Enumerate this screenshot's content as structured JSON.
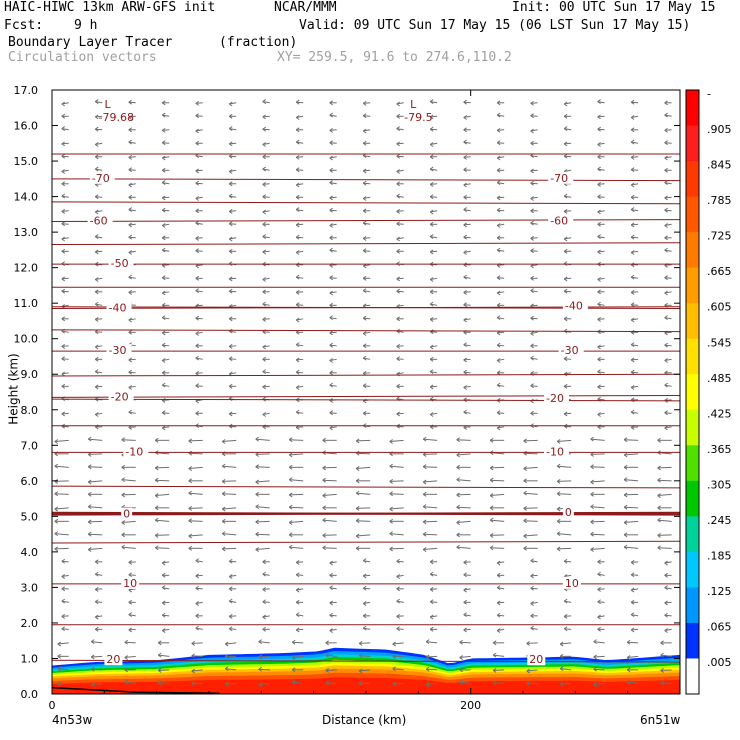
{
  "header": {
    "model": "HAIC-HIWC 13km ARW-GFS init",
    "org": "NCAR/MMM",
    "init": "Init: 00 UTC Sun 17 May 15",
    "fcst_label": "Fcst:",
    "fcst_value": "9 h",
    "valid": "Valid: 09 UTC Sun 17 May 15 (06 LST Sun 17 May 15)",
    "field_name": "Boundary Layer Tracer",
    "field_unit": "(fraction)",
    "vector_name": "Circulation vectors",
    "xy": "XY= 259.5, 91.6 to 274.6,110.2"
  },
  "chart_data": {
    "type": "heatmap",
    "xlabel": "Distance (km)",
    "ylabel": "Height (km)",
    "xlim": [
      0,
      300
    ],
    "ylim": [
      0,
      17
    ],
    "x_ticks": [
      "0",
      "200"
    ],
    "x_ticks_values": [
      0,
      200
    ],
    "x_end_labels": [
      "4n53w",
      "6n51w"
    ],
    "y_ticks": [
      "0.0",
      "1.0",
      "2.0",
      "3.0",
      "4.0",
      "5.0",
      "6.0",
      "7.0",
      "8.0",
      "9.0",
      "10.0",
      "11.0",
      "12.0",
      "13.0",
      "14.0",
      "15.0",
      "16.0",
      "17.0"
    ],
    "colorbar": {
      "labels": [
        "-",
        ".905",
        ".845",
        ".785",
        ".725",
        ".665",
        ".605",
        ".545",
        ".485",
        ".425",
        ".365",
        ".305",
        ".245",
        ".185",
        ".125",
        ".065",
        ".005"
      ],
      "colors": [
        "#ff0000",
        "#ff1e1e",
        "#ff3a00",
        "#ff5800",
        "#ff7a00",
        "#ff9c00",
        "#ffbf00",
        "#ffe000",
        "#ffff00",
        "#c8ff00",
        "#50e000",
        "#00c800",
        "#00d29a",
        "#00c8ff",
        "#0096ff",
        "#0032ff",
        "#ffffff"
      ]
    },
    "temperature_contours": {
      "units": "degC",
      "levels": [
        20,
        10,
        0,
        -10,
        -20,
        -30,
        -40,
        -50,
        -60,
        -70
      ],
      "labelled": [
        {
          "label": "20",
          "x_km": 26,
          "height_km": 0.95
        },
        {
          "label": "20",
          "x_km": 228,
          "height_km": 0.95
        },
        {
          "label": "10",
          "x_km": 34,
          "height_km": 3.1
        },
        {
          "label": "10",
          "x_km": 245,
          "height_km": 3.1
        },
        {
          "label": "0",
          "x_km": 34,
          "height_km": 5.05
        },
        {
          "label": "0",
          "x_km": 245,
          "height_km": 5.1
        },
        {
          "label": "-10",
          "x_km": 35,
          "height_km": 6.8
        },
        {
          "label": "-10",
          "x_km": 236,
          "height_km": 6.8
        },
        {
          "label": "-20",
          "x_km": 28,
          "height_km": 8.35
        },
        {
          "label": "-20",
          "x_km": 236,
          "height_km": 8.3
        },
        {
          "label": "-30",
          "x_km": 27,
          "height_km": 9.65
        },
        {
          "label": "-30",
          "x_km": 243,
          "height_km": 9.65
        },
        {
          "label": "-40",
          "x_km": 27,
          "height_km": 10.85
        },
        {
          "label": "-40",
          "x_km": 245,
          "height_km": 10.9
        },
        {
          "label": "-50",
          "x_km": 28,
          "height_km": 12.1
        },
        {
          "label": "-60",
          "x_km": 18,
          "height_km": 13.3
        },
        {
          "label": "-60",
          "x_km": 238,
          "height_km": 13.3
        },
        {
          "label": "-70",
          "x_km": 19,
          "height_km": 14.5
        },
        {
          "label": "-70",
          "x_km": 238,
          "height_km": 14.5
        }
      ],
      "extra_levels_km": [
        1.95,
        4.25,
        5.85,
        7.55,
        8.95,
        10.25,
        11.45,
        12.65,
        13.85,
        15.2
      ]
    },
    "minima": [
      {
        "label": "L",
        "value": "-79.68",
        "x_km": 27,
        "height_km": 16.5
      },
      {
        "label": "L",
        "value": "-79.5",
        "x_km": 173,
        "height_km": 16.5
      }
    ],
    "tracer_top_km": [
      [
        0,
        0.8
      ],
      [
        20,
        0.9
      ],
      [
        50,
        0.95
      ],
      [
        75,
        1.1
      ],
      [
        110,
        1.15
      ],
      [
        127,
        1.2
      ],
      [
        135,
        1.3
      ],
      [
        160,
        1.25
      ],
      [
        178,
        1.1
      ],
      [
        190,
        0.85
      ],
      [
        200,
        1.0
      ],
      [
        250,
        1.05
      ],
      [
        265,
        0.95
      ],
      [
        300,
        1.1
      ]
    ],
    "circulation_vectors": "mostly westward (leftward) flow at all levels"
  }
}
